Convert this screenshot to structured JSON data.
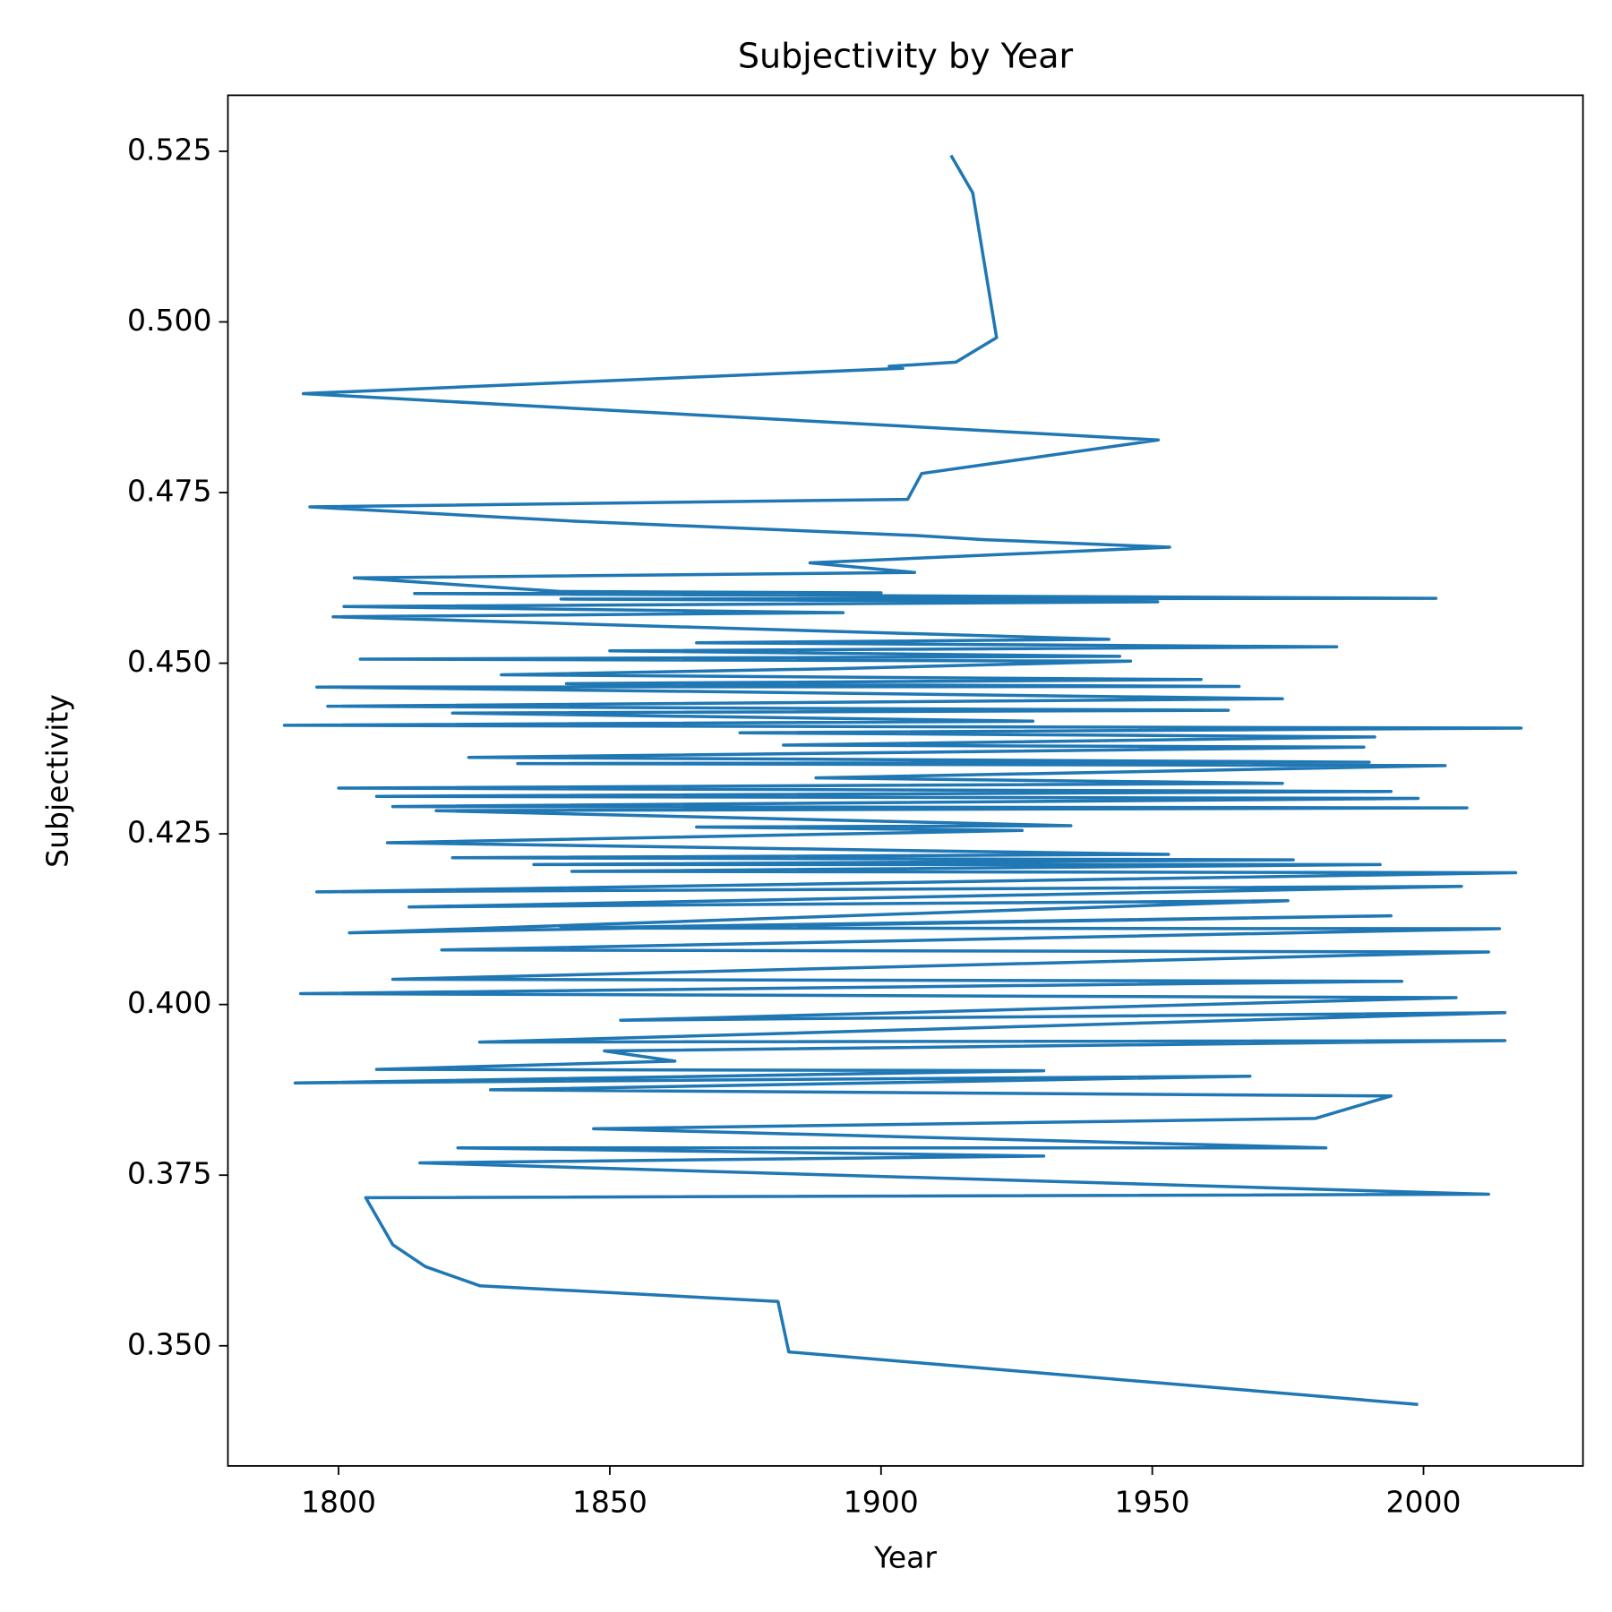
{
  "chart_data": {
    "type": "line",
    "title": "Subjectivity by Year",
    "x_label": "Year",
    "y_label": "Subjectivity",
    "color": "#1f77b4",
    "xlim": [
      1779.6,
      2029.4
    ],
    "ylim": [
      0.3324,
      0.5332
    ],
    "xticks": [
      1800,
      1850,
      1900,
      1950,
      2000
    ],
    "yticks": [
      {
        "value": 0.35,
        "label": "0.350"
      },
      {
        "value": 0.375,
        "label": "0.375"
      },
      {
        "value": 0.4,
        "label": "0.400"
      },
      {
        "value": 0.425,
        "label": "0.425"
      },
      {
        "value": 0.45,
        "label": "0.450"
      },
      {
        "value": 0.475,
        "label": "0.475"
      },
      {
        "value": 0.5,
        "label": "0.500"
      },
      {
        "value": 0.525,
        "label": "0.525"
      }
    ],
    "x": [
      1912.9,
      1916.9,
      1921.3,
      1913.8,
      1901.5,
      1904,
      1793.5,
      1951.1,
      1907.5,
      1904.9,
      1794.7,
      1843.6,
      1906.6,
      1919,
      1953.2,
      1886.9,
      1906.2,
      1802.9,
      1841,
      1900,
      1814,
      2002.3,
      1841,
      1951,
      1801,
      1893,
      1799,
      1942,
      1866,
      1984,
      1850,
      1944,
      1804,
      1946,
      1892,
      1830,
      1959,
      1842,
      1966,
      1796,
      1873,
      1974,
      1798,
      1964,
      1821,
      1928,
      1790,
      2018,
      1874,
      1991,
      1882,
      1989,
      1824,
      1990,
      1833,
      2004,
      1888,
      1974,
      1800,
      1994,
      1807,
      1999,
      1810,
      2008,
      1818,
      1935,
      1866,
      1926,
      1809,
      1953,
      1821,
      1976,
      1836,
      1992,
      1843,
      2017,
      1796,
      2007,
      1813,
      1975,
      1802,
      1994,
      1841,
      2014,
      1819,
      2012,
      1810,
      1996,
      1793,
      2006,
      1852,
      2015,
      1826,
      2015,
      1849,
      1862,
      1807,
      1930,
      1792,
      1968,
      1828,
      1994,
      1980,
      1847,
      1982,
      1822,
      1930,
      1815,
      2012,
      1805,
      1810,
      1816,
      1826,
      1881,
      1883,
      1999
    ],
    "values": [
      0.5244,
      0.5189,
      0.4977,
      0.4941,
      0.4935,
      0.4932,
      0.4895,
      0.4827,
      0.4778,
      0.474,
      0.4729,
      0.4708,
      0.4687,
      0.4681,
      0.467,
      0.4647,
      0.4633,
      0.4625,
      0.4605,
      0.4603,
      0.4602,
      0.4595,
      0.4594,
      0.459,
      0.4583,
      0.4574,
      0.4568,
      0.4535,
      0.453,
      0.4524,
      0.4518,
      0.451,
      0.4506,
      0.4503,
      0.4492,
      0.4483,
      0.4476,
      0.447,
      0.4466,
      0.4465,
      0.4458,
      0.4448,
      0.4437,
      0.4431,
      0.4427,
      0.4415,
      0.4409,
      0.4405,
      0.4398,
      0.4392,
      0.438,
      0.4377,
      0.4362,
      0.4355,
      0.4353,
      0.435,
      0.4332,
      0.4324,
      0.4317,
      0.4312,
      0.4305,
      0.4302,
      0.429,
      0.4288,
      0.4284,
      0.4262,
      0.426,
      0.4255,
      0.4237,
      0.422,
      0.4215,
      0.4212,
      0.4205,
      0.4205,
      0.4195,
      0.4193,
      0.4165,
      0.4173,
      0.4143,
      0.4152,
      0.4105,
      0.413,
      0.4112,
      0.4111,
      0.408,
      0.4077,
      0.4037,
      0.4034,
      0.4016,
      0.401,
      0.3977,
      0.3988,
      0.3945,
      0.3947,
      0.3932,
      0.3917,
      0.3905,
      0.3903,
      0.3885,
      0.3895,
      0.3875,
      0.3866,
      0.3833,
      0.3818,
      0.379,
      0.379,
      0.3778,
      0.3768,
      0.3722,
      0.3717,
      0.3648,
      0.3616,
      0.3588,
      0.3565,
      0.3491,
      0.3414
    ]
  }
}
